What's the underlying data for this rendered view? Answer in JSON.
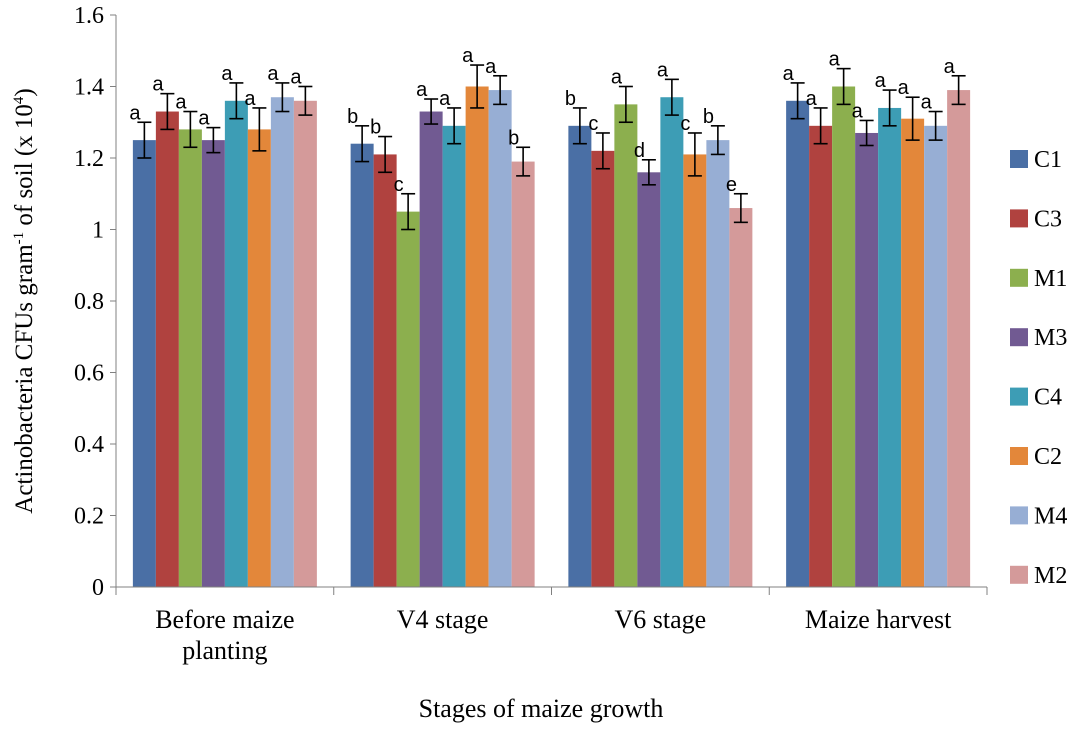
{
  "chart_data": {
    "type": "bar",
    "title": "",
    "xlabel": "Stages of maize growth",
    "ylabel_parts": {
      "main": "Actinobacteria CFUs gram",
      "exp1": "-1",
      "mid": " of soil (x 10",
      "exp2": "4",
      "end": ")"
    },
    "ylim": [
      0,
      1.6
    ],
    "yticks": [
      0,
      0.2,
      0.4,
      0.6,
      0.8,
      1,
      1.2,
      1.4,
      1.6
    ],
    "ytick_labels": [
      "0",
      "0.2",
      "0.4",
      "0.6",
      "0.8",
      "1",
      "1.2",
      "1.4",
      "1.6"
    ],
    "categories": [
      [
        "Before maize",
        "planting"
      ],
      [
        "V4 stage"
      ],
      [
        "V6 stage"
      ],
      [
        "Maize harvest"
      ]
    ],
    "legend_position": "right",
    "series": [
      {
        "name": "C1",
        "color": "#4a6fa5",
        "values": [
          1.25,
          1.24,
          1.29,
          1.36
        ],
        "errors": [
          0.05,
          0.05,
          0.05,
          0.05
        ],
        "labels": [
          "a",
          "b",
          "b",
          "a"
        ]
      },
      {
        "name": "C3",
        "color": "#b0423f",
        "values": [
          1.33,
          1.21,
          1.22,
          1.29
        ],
        "errors": [
          0.05,
          0.05,
          0.05,
          0.05
        ],
        "labels": [
          "a",
          "b",
          "c",
          "a"
        ]
      },
      {
        "name": "M1",
        "color": "#8caf4e",
        "values": [
          1.28,
          1.05,
          1.35,
          1.4
        ],
        "errors": [
          0.05,
          0.05,
          0.05,
          0.05
        ],
        "labels": [
          "a",
          "c",
          "a",
          "a"
        ]
      },
      {
        "name": "M3",
        "color": "#715a92",
        "values": [
          1.25,
          1.33,
          1.16,
          1.27
        ],
        "errors": [
          0.035,
          0.035,
          0.035,
          0.035
        ],
        "labels": [
          "a",
          "a",
          "d",
          "a"
        ]
      },
      {
        "name": "C4",
        "color": "#3d9db5",
        "values": [
          1.36,
          1.29,
          1.37,
          1.34
        ],
        "errors": [
          0.05,
          0.05,
          0.05,
          0.05
        ],
        "labels": [
          "a",
          "a",
          "a",
          "a"
        ]
      },
      {
        "name": "C2",
        "color": "#e3873a",
        "values": [
          1.28,
          1.4,
          1.21,
          1.31
        ],
        "errors": [
          0.06,
          0.06,
          0.06,
          0.06
        ],
        "labels": [
          "a",
          "a",
          "c",
          "a"
        ]
      },
      {
        "name": "M4",
        "color": "#97aed4",
        "values": [
          1.37,
          1.39,
          1.25,
          1.29
        ],
        "errors": [
          0.04,
          0.04,
          0.04,
          0.04
        ],
        "labels": [
          "a",
          "a",
          "b",
          "a"
        ]
      },
      {
        "name": "M2",
        "color": "#d49a9a",
        "values": [
          1.36,
          1.19,
          1.06,
          1.39
        ],
        "errors": [
          0.04,
          0.04,
          0.04,
          0.04
        ],
        "labels": [
          "a",
          "b",
          "e",
          "a"
        ]
      }
    ]
  }
}
